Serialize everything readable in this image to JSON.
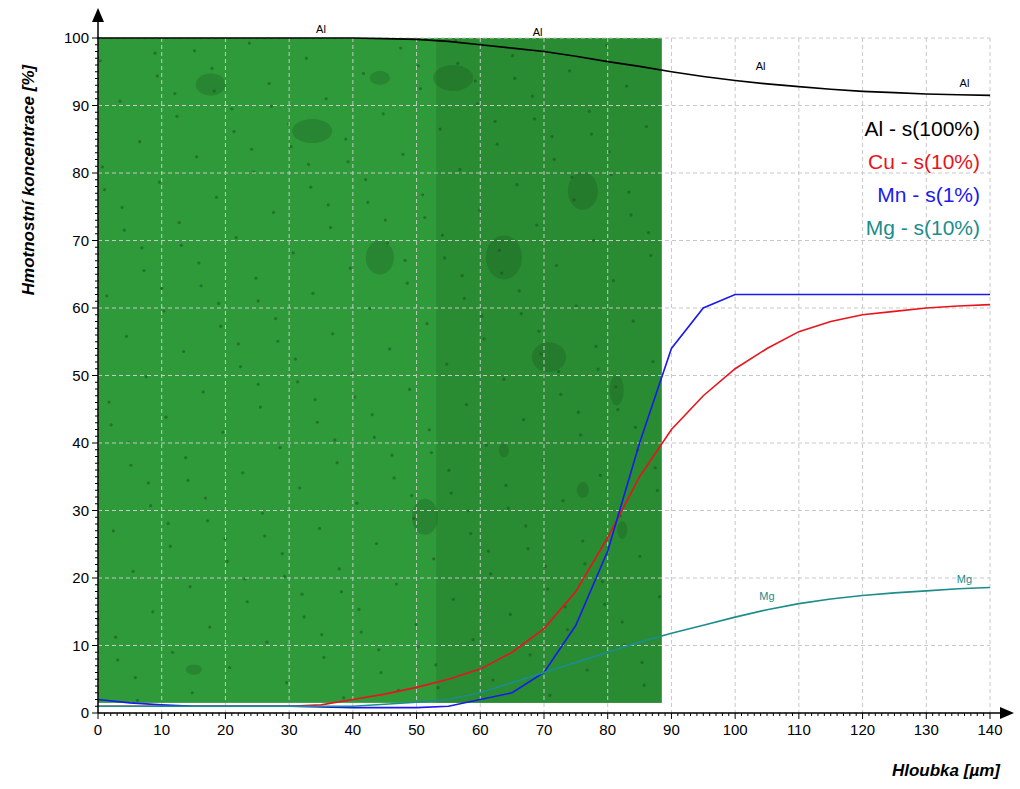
{
  "chart_data": {
    "type": "line",
    "x_label": "Hloubka [µm]",
    "y_label": "Hmotnostní koncentrace [%]",
    "x": [
      0,
      5,
      10,
      15,
      20,
      25,
      30,
      35,
      40,
      45,
      50,
      55,
      60,
      65,
      70,
      75,
      80,
      85,
      90,
      95,
      100,
      105,
      110,
      115,
      120,
      125,
      130,
      135,
      140
    ],
    "series": [
      {
        "name": "Al - s(100%)",
        "color": "#000000",
        "line_style": "solid",
        "values": [
          100,
          100,
          100,
          100,
          100,
          100,
          100,
          100,
          100,
          99.9,
          99.8,
          99.5,
          99,
          98.5,
          98,
          97.3,
          96.5,
          95.8,
          95,
          94.3,
          93.7,
          93.2,
          92.8,
          92.4,
          92.1,
          91.9,
          91.7,
          91.6,
          91.5
        ]
      },
      {
        "name": "Cu - s(10%)",
        "color": "#e8141c",
        "line_style": "solid",
        "values": [
          1,
          1,
          1,
          1,
          1,
          1,
          1,
          1.2,
          2,
          2.8,
          3.8,
          5,
          6.5,
          9,
          12.5,
          18,
          26,
          35,
          42,
          47,
          51,
          54,
          56.5,
          58,
          59,
          59.5,
          60,
          60.3,
          60.5
        ]
      },
      {
        "name": "Mn - s(1%)",
        "color": "#1a1aee",
        "line_style": "solid",
        "values": [
          2,
          1.5,
          1.2,
          1,
          1,
          1,
          1,
          0.9,
          0.8,
          0.8,
          0.8,
          1,
          2,
          3,
          6,
          13,
          24,
          40,
          54,
          60,
          62,
          62,
          62,
          62,
          62,
          62,
          62,
          62,
          62
        ]
      },
      {
        "name": "Mg - s(10%)",
        "color": "#1c8c8c",
        "line_style": "solid",
        "values": [
          1,
          1,
          1,
          1,
          1,
          1,
          1,
          1,
          1,
          1.3,
          1.6,
          2,
          3,
          4.5,
          6,
          7.5,
          9,
          10.5,
          11.8,
          13,
          14.2,
          15.3,
          16.2,
          16.9,
          17.4,
          17.8,
          18.1,
          18.4,
          18.6
        ]
      }
    ],
    "annotations": [
      {
        "text": "Al",
        "x": 35,
        "y": 100.8,
        "color": "#000000"
      },
      {
        "text": "Al",
        "x": 69,
        "y": 100.3,
        "color": "#000000"
      },
      {
        "text": "Al",
        "x": 104,
        "y": 95.2,
        "color": "#000000"
      },
      {
        "text": "Al",
        "x": 136,
        "y": 92.8,
        "color": "#000000"
      },
      {
        "text": "Mg",
        "x": 105,
        "y": 16.8,
        "color": "#1c8c8c"
      },
      {
        "text": "Mg",
        "x": 136,
        "y": 19.3,
        "color": "#1c8c8c"
      }
    ],
    "xlim": [
      0,
      140
    ],
    "ylim": [
      0,
      100
    ],
    "xticks": [
      0,
      10,
      20,
      30,
      40,
      50,
      60,
      70,
      80,
      90,
      100,
      110,
      120,
      130,
      140
    ],
    "yticks": [
      0,
      10,
      20,
      30,
      40,
      50,
      60,
      70,
      80,
      90,
      100
    ],
    "grid": true,
    "legend": "upper right"
  }
}
